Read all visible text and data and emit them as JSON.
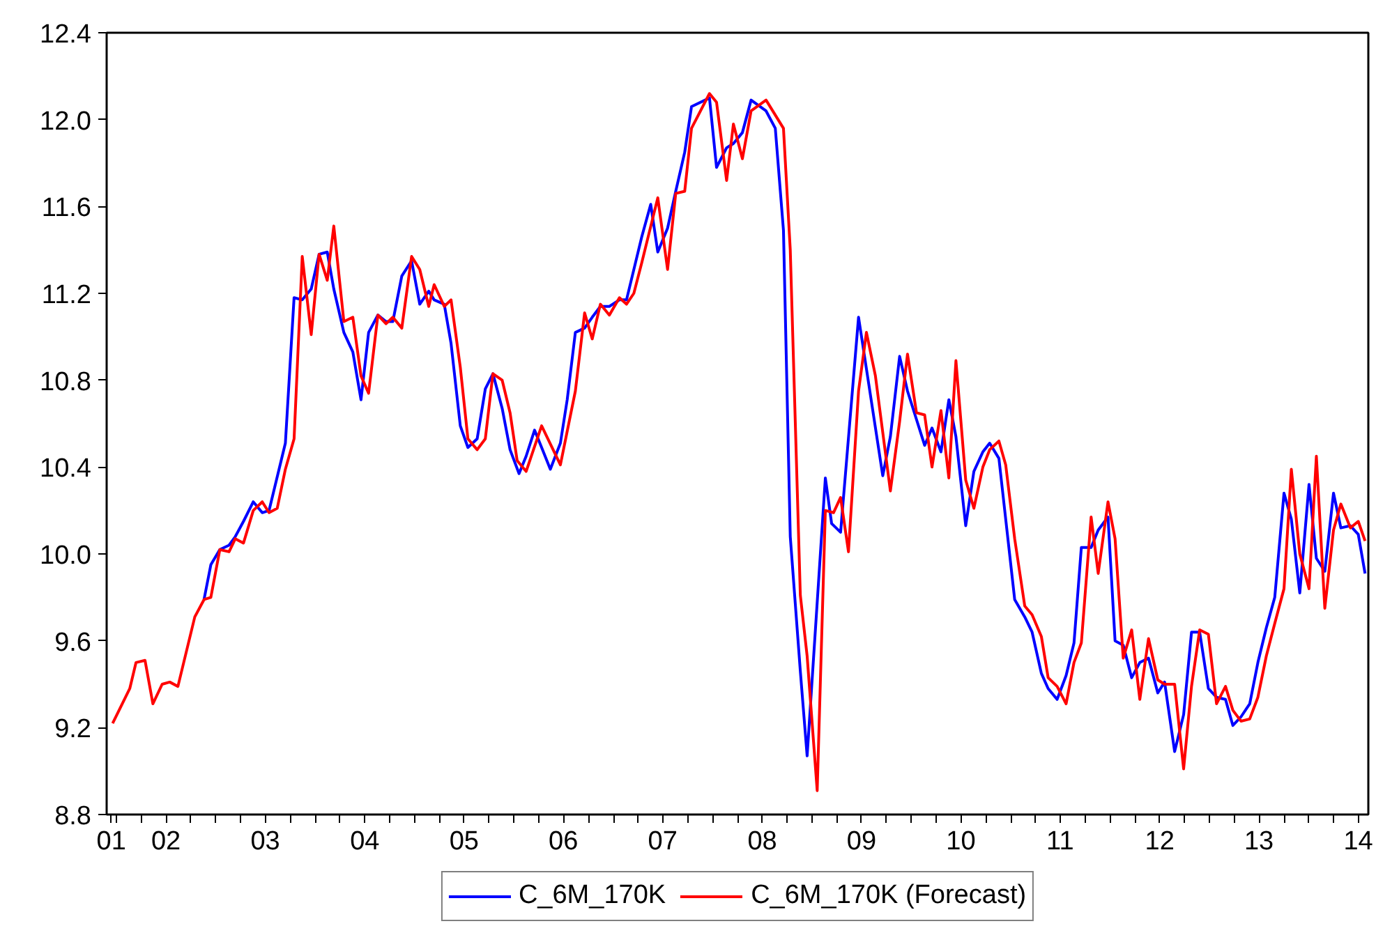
{
  "chart_data": {
    "type": "line",
    "xlim": [
      "2001-11-25",
      "2014-08-07"
    ],
    "xticks": [
      {
        "value": "2001-12-12",
        "label": "01"
      },
      {
        "value": "2002-01-01",
        "label": null
      },
      {
        "value": "2002-04-01",
        "label": null
      },
      {
        "value": "2002-07-01",
        "label": "02"
      },
      {
        "value": "2002-10-01",
        "label": null
      },
      {
        "value": "2003-01-01",
        "label": null
      },
      {
        "value": "2003-04-01",
        "label": null
      },
      {
        "value": "2003-07-01",
        "label": "03"
      },
      {
        "value": "2003-10-01",
        "label": null
      },
      {
        "value": "2004-01-01",
        "label": null
      },
      {
        "value": "2004-04-01",
        "label": null
      },
      {
        "value": "2004-07-01",
        "label": "04"
      },
      {
        "value": "2004-10-01",
        "label": null
      },
      {
        "value": "2005-01-01",
        "label": null
      },
      {
        "value": "2005-04-01",
        "label": null
      },
      {
        "value": "2005-07-01",
        "label": "05"
      },
      {
        "value": "2005-10-01",
        "label": null
      },
      {
        "value": "2006-01-01",
        "label": null
      },
      {
        "value": "2006-04-01",
        "label": null
      },
      {
        "value": "2006-07-01",
        "label": "06"
      },
      {
        "value": "2006-10-01",
        "label": null
      },
      {
        "value": "2007-01-01",
        "label": null
      },
      {
        "value": "2007-04-01",
        "label": null
      },
      {
        "value": "2007-07-01",
        "label": "07"
      },
      {
        "value": "2007-10-01",
        "label": null
      },
      {
        "value": "2008-01-01",
        "label": null
      },
      {
        "value": "2008-04-01",
        "label": null
      },
      {
        "value": "2008-07-01",
        "label": "08"
      },
      {
        "value": "2008-10-01",
        "label": null
      },
      {
        "value": "2009-01-01",
        "label": null
      },
      {
        "value": "2009-04-01",
        "label": null
      },
      {
        "value": "2009-07-01",
        "label": "09"
      },
      {
        "value": "2009-10-01",
        "label": null
      },
      {
        "value": "2010-01-01",
        "label": null
      },
      {
        "value": "2010-04-01",
        "label": null
      },
      {
        "value": "2010-07-01",
        "label": "10"
      },
      {
        "value": "2010-10-01",
        "label": null
      },
      {
        "value": "2011-01-01",
        "label": null
      },
      {
        "value": "2011-04-01",
        "label": null
      },
      {
        "value": "2011-07-01",
        "label": "11"
      },
      {
        "value": "2011-10-01",
        "label": null
      },
      {
        "value": "2012-01-01",
        "label": null
      },
      {
        "value": "2012-04-01",
        "label": null
      },
      {
        "value": "2012-07-01",
        "label": "12"
      },
      {
        "value": "2012-10-01",
        "label": null
      },
      {
        "value": "2013-01-01",
        "label": null
      },
      {
        "value": "2013-04-01",
        "label": null
      },
      {
        "value": "2013-07-01",
        "label": "13"
      },
      {
        "value": "2013-10-01",
        "label": null
      },
      {
        "value": "2014-01-01",
        "label": null
      },
      {
        "value": "2014-04-01",
        "label": null
      },
      {
        "value": "2014-07-01",
        "label": "14"
      }
    ],
    "ylim": [
      8.8,
      12.4
    ],
    "yticks": [
      8.8,
      9.2,
      9.6,
      {
        "value": 10.0,
        "label": "10.0"
      },
      10.4,
      10.8,
      11.2,
      11.6,
      {
        "value": 12.0,
        "label": "12.0"
      },
      12.4
    ],
    "grid": false,
    "legend": "bottom",
    "line_style": "solid",
    "series": [
      {
        "name": "C_6M_170K",
        "color": "#0000ff",
        "x": [
          "2002-11-18",
          "2002-12-13",
          "2003-01-15",
          "2003-02-18",
          "2003-03-13",
          "2003-04-12",
          "2003-05-18",
          "2003-06-20",
          "2003-07-15",
          "2003-09-13",
          "2003-10-15",
          "2003-11-14",
          "2003-12-17",
          "2004-01-15",
          "2004-02-14",
          "2004-03-09",
          "2004-04-15",
          "2004-05-18",
          "2004-06-17",
          "2004-07-15",
          "2004-08-18",
          "2004-09-17",
          "2004-10-12",
          "2004-11-14",
          "2004-12-20",
          "2005-01-19",
          "2005-02-21",
          "2005-03-13",
          "2005-04-19",
          "2005-05-14",
          "2005-06-17",
          "2005-07-15",
          "2005-08-18",
          "2005-09-17",
          "2005-10-15",
          "2005-11-18",
          "2005-12-17",
          "2006-01-19",
          "2006-02-14",
          "2006-03-17",
          "2006-04-12",
          "2006-05-14",
          "2006-06-20",
          "2006-07-15",
          "2006-08-14",
          "2006-09-17",
          "2006-10-15",
          "2006-11-14",
          "2006-12-17",
          "2007-01-23",
          "2007-02-18",
          "2007-04-15",
          "2007-05-18",
          "2007-06-13",
          "2007-07-19",
          "2007-08-18",
          "2007-09-20",
          "2007-10-15",
          "2007-12-20",
          "2008-01-15",
          "2008-02-21",
          "2008-03-17",
          "2008-04-19",
          "2008-05-21",
          "2008-07-15",
          "2008-08-18",
          "2008-09-17",
          "2008-10-12",
          "2008-11-18",
          "2008-12-13",
          "2009-02-18",
          "2009-03-13",
          "2009-04-15",
          "2009-06-20",
          "2009-09-17",
          "2009-10-15",
          "2009-11-18",
          "2009-12-17",
          "2010-02-18",
          "2010-03-17",
          "2010-04-19",
          "2010-05-18",
          "2010-06-13",
          "2010-07-19",
          "2010-08-18",
          "2010-09-20",
          "2010-10-15",
          "2010-11-18",
          "2011-01-15",
          "2011-02-21",
          "2011-03-20",
          "2011-04-23",
          "2011-05-18",
          "2011-06-20",
          "2011-07-23",
          "2011-08-21",
          "2011-09-17",
          "2011-10-23",
          "2011-11-18",
          "2011-12-24",
          "2012-01-19",
          "2012-02-18",
          "2012-03-20",
          "2012-04-19",
          "2012-05-21",
          "2012-06-24",
          "2012-07-19",
          "2012-08-25",
          "2012-09-27",
          "2012-10-26",
          "2012-11-25",
          "2012-12-27",
          "2013-01-26",
          "2013-02-28",
          "2013-03-27",
          "2013-04-26",
          "2013-05-28",
          "2013-06-27",
          "2013-07-28",
          "2013-08-28",
          "2013-10-01",
          "2013-10-28",
          "2013-11-28",
          "2014-01-01",
          "2014-01-28",
          "2014-02-28",
          "2014-04-01",
          "2014-04-28",
          "2014-06-02",
          "2014-07-01",
          "2014-07-26"
        ],
        "values": [
          9.79,
          9.95,
          10.02,
          10.04,
          10.08,
          10.15,
          10.24,
          10.19,
          10.2,
          10.51,
          11.18,
          11.17,
          11.22,
          11.38,
          11.39,
          11.22,
          11.02,
          10.93,
          10.71,
          11.02,
          11.1,
          11.07,
          11.07,
          11.28,
          11.35,
          11.15,
          11.21,
          11.17,
          11.15,
          10.97,
          10.59,
          10.49,
          10.53,
          10.76,
          10.83,
          10.67,
          10.48,
          10.37,
          10.45,
          10.57,
          10.49,
          10.39,
          10.51,
          10.71,
          11.02,
          11.04,
          11.09,
          11.14,
          11.14,
          11.17,
          11.17,
          11.46,
          11.61,
          11.39,
          11.5,
          11.67,
          11.85,
          12.06,
          12.1,
          11.78,
          11.87,
          11.89,
          11.94,
          12.09,
          12.04,
          11.96,
          11.49,
          10.08,
          9.46,
          9.07,
          10.35,
          10.14,
          10.1,
          11.09,
          10.36,
          10.54,
          10.91,
          10.75,
          10.5,
          10.58,
          10.47,
          10.71,
          10.54,
          10.13,
          10.38,
          10.47,
          10.51,
          10.44,
          9.79,
          9.71,
          9.64,
          9.45,
          9.38,
          9.33,
          9.44,
          9.59,
          10.03,
          10.03,
          10.11,
          10.17,
          9.6,
          9.58,
          9.43,
          9.5,
          9.52,
          9.36,
          9.41,
          9.09,
          9.26,
          9.64,
          9.64,
          9.38,
          9.34,
          9.33,
          9.21,
          9.25,
          9.31,
          9.5,
          9.66,
          9.8,
          10.28,
          10.16,
          9.82,
          10.32,
          9.98,
          9.92,
          10.28,
          10.12,
          10.13,
          10.09,
          9.91
        ]
      },
      {
        "name": "C_6M_170K (Forecast)",
        "color": "#ff0000",
        "x": [
          "2001-12-17",
          "2002-02-18",
          "2002-03-13",
          "2002-04-15",
          "2002-05-14",
          "2002-06-17",
          "2002-07-15",
          "2002-08-14",
          "2002-10-15",
          "2002-11-18",
          "2002-12-13",
          "2003-01-15",
          "2003-02-18",
          "2003-03-13",
          "2003-04-12",
          "2003-05-18",
          "2003-06-20",
          "2003-07-15",
          "2003-08-14",
          "2003-09-13",
          "2003-10-15",
          "2003-11-14",
          "2003-12-17",
          "2004-01-15",
          "2004-02-14",
          "2004-03-09",
          "2004-04-15",
          "2004-05-18",
          "2004-06-17",
          "2004-07-15",
          "2004-08-18",
          "2004-09-17",
          "2004-10-12",
          "2004-11-14",
          "2004-12-20",
          "2005-01-19",
          "2005-02-21",
          "2005-03-13",
          "2005-04-19",
          "2005-05-14",
          "2005-06-17",
          "2005-07-15",
          "2005-08-18",
          "2005-09-17",
          "2005-10-15",
          "2005-11-18",
          "2005-12-17",
          "2006-01-12",
          "2006-02-14",
          "2006-04-12",
          "2006-06-20",
          "2006-08-14",
          "2006-09-17",
          "2006-10-15",
          "2006-11-14",
          "2006-12-17",
          "2007-01-23",
          "2007-02-18",
          "2007-03-17",
          "2007-04-15",
          "2007-06-13",
          "2007-07-19",
          "2007-08-18",
          "2007-09-20",
          "2007-10-15",
          "2007-12-20",
          "2008-01-15",
          "2008-02-21",
          "2008-03-17",
          "2008-04-19",
          "2008-05-21",
          "2008-07-15",
          "2008-09-17",
          "2008-10-12",
          "2008-11-18",
          "2008-12-13",
          "2009-01-19",
          "2009-02-18",
          "2009-03-20",
          "2009-04-15",
          "2009-05-14",
          "2009-06-20",
          "2009-07-19",
          "2009-08-21",
          "2009-10-15",
          "2009-11-18",
          "2009-12-17",
          "2010-01-19",
          "2010-02-18",
          "2010-03-17",
          "2010-04-19",
          "2010-05-18",
          "2010-06-13",
          "2010-07-19",
          "2010-08-18",
          "2010-09-20",
          "2010-10-15",
          "2010-11-18",
          "2010-12-13",
          "2011-01-15",
          "2011-02-21",
          "2011-03-20",
          "2011-04-23",
          "2011-05-18",
          "2011-06-20",
          "2011-07-23",
          "2011-08-21",
          "2011-09-17",
          "2011-10-23",
          "2011-11-18",
          "2011-12-24",
          "2012-01-19",
          "2012-02-18",
          "2012-03-20",
          "2012-04-19",
          "2012-05-21",
          "2012-06-24",
          "2012-07-19",
          "2012-08-25",
          "2012-09-27",
          "2012-10-26",
          "2012-11-25",
          "2012-12-27",
          "2013-01-26",
          "2013-02-28",
          "2013-03-27",
          "2013-04-26",
          "2013-05-28",
          "2013-06-27",
          "2013-07-28",
          "2013-08-28",
          "2013-10-01",
          "2013-10-28",
          "2013-11-28",
          "2014-01-01",
          "2014-01-28",
          "2014-02-28",
          "2014-04-01",
          "2014-04-28",
          "2014-06-02",
          "2014-07-01",
          "2014-07-26"
        ],
        "values": [
          9.22,
          9.38,
          9.5,
          9.51,
          9.31,
          9.4,
          9.41,
          9.39,
          9.71,
          9.79,
          9.8,
          10.02,
          10.01,
          10.07,
          10.05,
          10.2,
          10.24,
          10.19,
          10.21,
          10.39,
          10.53,
          11.37,
          11.01,
          11.38,
          11.26,
          11.51,
          11.07,
          11.09,
          10.82,
          10.74,
          11.1,
          11.06,
          11.09,
          11.04,
          11.37,
          11.31,
          11.14,
          11.24,
          11.14,
          11.17,
          10.86,
          10.53,
          10.48,
          10.53,
          10.83,
          10.8,
          10.65,
          10.43,
          10.38,
          10.59,
          10.41,
          10.75,
          11.11,
          10.99,
          11.15,
          11.1,
          11.18,
          11.15,
          11.2,
          11.34,
          11.64,
          11.31,
          11.66,
          11.67,
          11.96,
          12.12,
          12.08,
          11.72,
          11.98,
          11.82,
          12.04,
          12.09,
          11.96,
          11.4,
          9.81,
          9.53,
          8.91,
          10.2,
          10.19,
          10.26,
          10.01,
          10.75,
          11.02,
          10.82,
          10.29,
          10.61,
          10.92,
          10.65,
          10.64,
          10.4,
          10.66,
          10.35,
          10.89,
          10.34,
          10.21,
          10.4,
          10.48,
          10.52,
          10.41,
          10.07,
          9.76,
          9.72,
          9.62,
          9.43,
          9.39,
          9.31,
          9.5,
          9.59,
          10.17,
          9.91,
          10.24,
          10.07,
          9.52,
          9.65,
          9.33,
          9.61,
          9.42,
          9.4,
          9.4,
          9.01,
          9.39,
          9.65,
          9.63,
          9.31,
          9.39,
          9.28,
          9.23,
          9.24,
          9.34,
          9.53,
          9.68,
          9.84,
          10.39,
          10.0,
          9.84,
          10.45,
          9.75,
          10.11,
          10.23,
          10.12,
          10.15,
          10.06
        ]
      }
    ]
  }
}
